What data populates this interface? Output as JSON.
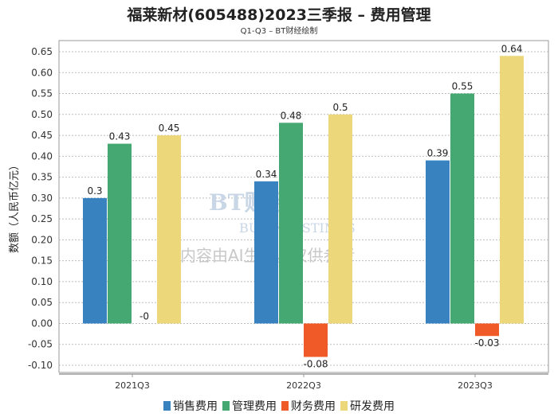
{
  "chart_data": {
    "type": "bar",
    "title": "福莱新材(605488)2023三季报 – 费用管理",
    "subtitle": "Q1-Q3 – BT财经绘制",
    "xlabel": "",
    "ylabel": "数额（人民币亿元）",
    "ylim": [
      -0.1,
      0.65
    ],
    "yticks": [
      "0.65",
      "0.60",
      "0.55",
      "0.50",
      "0.45",
      "0.40",
      "0.35",
      "0.30",
      "0.25",
      "0.20",
      "0.15",
      "0.10",
      "0.05",
      "0.00",
      "-0.05",
      "-0.10"
    ],
    "grid": true,
    "legend_position": "bottom",
    "categories": [
      "2021Q3",
      "2022Q3",
      "2023Q3"
    ],
    "series": [
      {
        "name": "销售费用",
        "color": "#3882c0",
        "values": [
          0.3,
          0.34,
          0.39
        ],
        "labels": [
          "0.3",
          "0.34",
          "0.39"
        ]
      },
      {
        "name": "管理费用",
        "color": "#45a872",
        "values": [
          0.43,
          0.48,
          0.55
        ],
        "labels": [
          "0.43",
          "0.48",
          "0.55"
        ]
      },
      {
        "name": "财务费用",
        "color": "#f05a28",
        "values": [
          0,
          -0.08,
          -0.03
        ],
        "labels": [
          "-0",
          "-0.08",
          "-0.03"
        ]
      },
      {
        "name": "研发费用",
        "color": "#ecd77a",
        "values": [
          0.45,
          0.5,
          0.64
        ],
        "labels": [
          "0.45",
          "0.5",
          "0.64"
        ]
      }
    ]
  },
  "watermark": {
    "brand": "BT财经",
    "brand_en": "BUSINESSTIMES",
    "notice": "内容由AI生成，仅供参考"
  }
}
